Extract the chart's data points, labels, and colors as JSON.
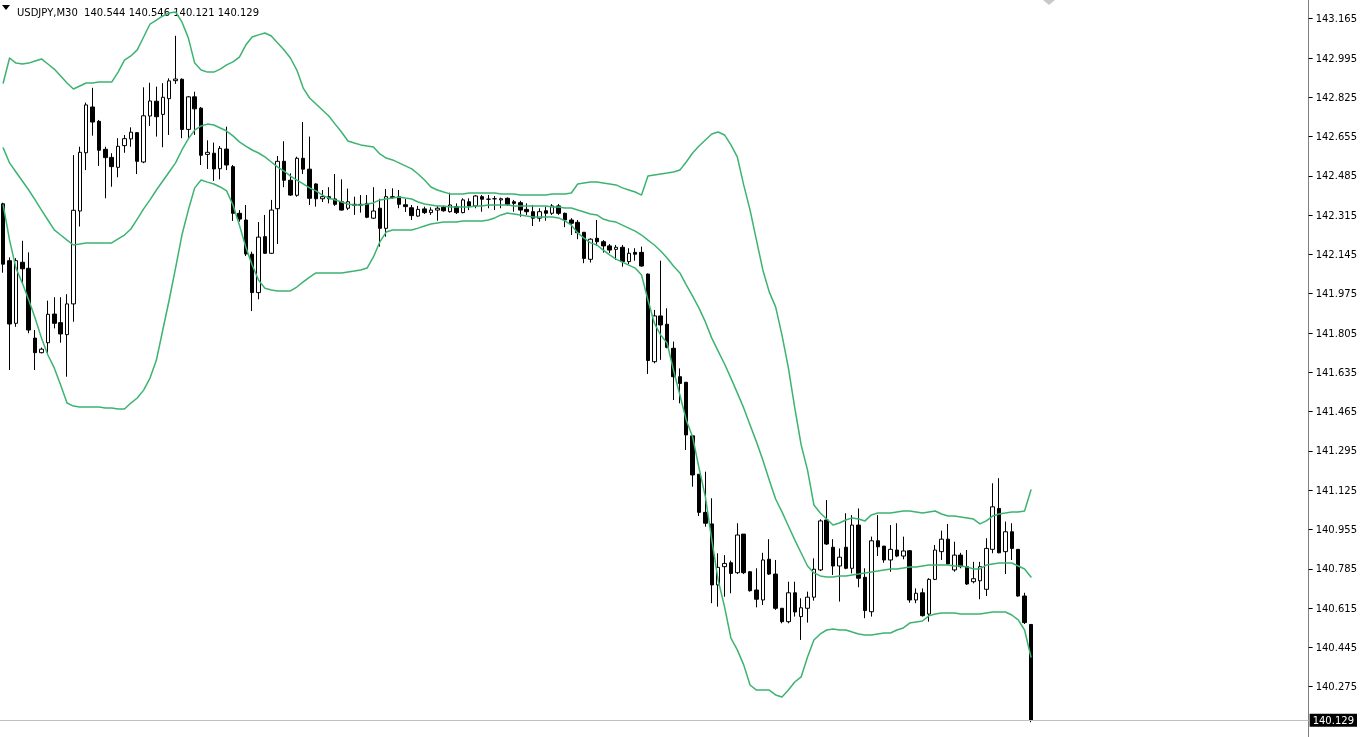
{
  "chart_data": {
    "type": "candlestick",
    "title": "USDJPY,M30  140.544 140.546 140.121 140.129",
    "categories": [
      null,
      null,
      null,
      null,
      null,
      null,
      null,
      null,
      null,
      null,
      null,
      null,
      null,
      null,
      null,
      null,
      null,
      null,
      null,
      null,
      null,
      null,
      null,
      null,
      null,
      null,
      null,
      null,
      null,
      null,
      null,
      null,
      null,
      null,
      null,
      null,
      null,
      null,
      null,
      null,
      null,
      null,
      null,
      null,
      null,
      null,
      null,
      null,
      null,
      null,
      null,
      null,
      null,
      null,
      null,
      null,
      null,
      null,
      null,
      null,
      null,
      null,
      null,
      null,
      null,
      null,
      null,
      null,
      null,
      null,
      null,
      null,
      null,
      null,
      null,
      null,
      null,
      null,
      null,
      null,
      null,
      null,
      null,
      null,
      null,
      null,
      null,
      null,
      null,
      null,
      null,
      null,
      null,
      null,
      null,
      null,
      null,
      null,
      null,
      null,
      null,
      null,
      null,
      null,
      null,
      null,
      null,
      null,
      null,
      null,
      null,
      null,
      null,
      null,
      null,
      null,
      null,
      null,
      null,
      null,
      null,
      null,
      null,
      null,
      null,
      null,
      null,
      null,
      null,
      null,
      null,
      null,
      null,
      null,
      null,
      null,
      null,
      null,
      null,
      null,
      null,
      null,
      null,
      null,
      null,
      null,
      null,
      null,
      null,
      null,
      null,
      null,
      null,
      null,
      null,
      null,
      null,
      null,
      null,
      null,
      null,
      null,
      null,
      null,
      null,
      null,
      null,
      null,
      null,
      null,
      null,
      null,
      null,
      null,
      null,
      null,
      null,
      null,
      null,
      null,
      null,
      null,
      null,
      null,
      null,
      null,
      null,
      null,
      null,
      null,
      null,
      null,
      null,
      null,
      null,
      null,
      null,
      null,
      null,
      null,
      null,
      null,
      null,
      null,
      null
    ],
    "ohlc": [
      [
        142.364,
        142.369,
        142.066,
        142.103
      ],
      [
        142.118,
        142.132,
        141.645,
        141.844
      ],
      [
        141.847,
        142.129,
        141.832,
        142.118
      ],
      [
        142.111,
        142.204,
        142.02,
        142.083
      ],
      [
        142.085,
        142.154,
        141.804,
        141.818
      ],
      [
        141.783,
        141.818,
        141.645,
        141.72
      ],
      [
        141.72,
        141.742,
        141.717,
        141.735
      ],
      [
        141.763,
        141.945,
        141.717,
        141.886
      ],
      [
        141.887,
        141.96,
        141.825,
        141.847
      ],
      [
        141.85,
        141.96,
        141.763,
        141.801
      ],
      [
        141.798,
        141.973,
        141.616,
        141.931
      ],
      [
        141.931,
        142.575,
        141.854,
        142.336
      ],
      [
        142.333,
        142.611,
        142.266,
        142.587
      ],
      [
        142.585,
        142.802,
        142.51,
        142.792
      ],
      [
        142.783,
        142.866,
        142.659,
        142.718
      ],
      [
        142.721,
        142.727,
        142.528,
        142.596
      ],
      [
        142.6,
        142.611,
        142.388,
        142.564
      ],
      [
        142.565,
        142.583,
        142.438,
        142.525
      ],
      [
        142.522,
        142.648,
        142.479,
        142.613
      ],
      [
        142.616,
        142.662,
        142.585,
        142.646
      ],
      [
        142.645,
        142.695,
        142.611,
        142.674
      ],
      [
        142.672,
        142.674,
        142.493,
        142.548
      ],
      [
        142.545,
        142.868,
        142.54,
        142.745
      ],
      [
        142.744,
        142.888,
        142.701,
        142.809
      ],
      [
        142.808,
        142.871,
        142.655,
        142.741
      ],
      [
        142.751,
        142.886,
        142.609,
        142.825
      ],
      [
        142.819,
        142.907,
        142.662,
        142.896
      ],
      [
        142.897,
        143.091,
        142.883,
        142.904
      ],
      [
        142.903,
        142.907,
        142.648,
        142.686
      ],
      [
        142.686,
        142.83,
        142.646,
        142.827
      ],
      [
        142.827,
        142.849,
        142.662,
        142.775
      ],
      [
        142.778,
        142.783,
        142.532,
        142.574
      ],
      [
        142.578,
        142.639,
        142.515,
        142.587
      ],
      [
        142.583,
        142.629,
        142.463,
        142.515
      ],
      [
        142.516,
        142.614,
        142.47,
        142.604
      ],
      [
        142.601,
        142.698,
        142.51,
        142.532
      ],
      [
        142.525,
        142.532,
        142.29,
        142.323
      ],
      [
        142.323,
        142.337,
        142.287,
        142.298
      ],
      [
        142.294,
        142.359,
        142.138,
        142.147
      ],
      [
        142.146,
        142.157,
        141.9,
        141.98
      ],
      [
        141.98,
        142.285,
        141.951,
        142.22
      ],
      [
        142.222,
        142.316,
        142.147,
        142.15
      ],
      [
        142.15,
        142.381,
        142.147,
        142.337
      ],
      [
        142.343,
        142.571,
        142.19,
        142.548
      ],
      [
        142.548,
        142.635,
        142.436,
        142.466
      ],
      [
        142.466,
        142.496,
        142.398,
        142.402
      ],
      [
        142.401,
        142.568,
        142.395,
        142.561
      ],
      [
        142.561,
        142.718,
        142.493,
        142.514
      ],
      [
        142.514,
        142.655,
        142.359,
        142.388
      ],
      [
        142.45,
        142.453,
        142.352,
        142.386
      ],
      [
        142.386,
        142.424,
        142.372,
        142.395
      ],
      [
        142.395,
        142.436,
        142.366,
        142.386
      ],
      [
        142.385,
        142.493,
        142.355,
        142.362
      ],
      [
        142.373,
        142.47,
        142.335,
        142.337
      ],
      [
        142.345,
        142.43,
        142.337,
        142.373
      ],
      [
        142.362,
        142.395,
        142.316,
        142.358
      ],
      [
        142.362,
        142.402,
        142.326,
        142.358
      ],
      [
        142.366,
        142.402,
        142.302,
        142.306
      ],
      [
        142.302,
        142.436,
        142.298,
        142.333
      ],
      [
        142.345,
        142.386,
        142.179,
        142.258
      ],
      [
        142.258,
        142.428,
        142.222,
        142.395
      ],
      [
        142.395,
        142.431,
        142.386,
        142.391
      ],
      [
        142.395,
        142.424,
        142.345,
        142.362
      ],
      [
        142.36,
        142.385,
        142.329,
        142.352
      ],
      [
        142.347,
        142.359,
        142.294,
        142.313
      ],
      [
        142.311,
        142.355,
        142.308,
        142.34
      ],
      [
        142.342,
        142.352,
        142.32,
        142.326
      ],
      [
        142.326,
        142.349,
        142.316,
        142.337
      ],
      [
        142.337,
        142.355,
        142.291,
        142.345
      ],
      [
        142.349,
        142.355,
        142.33,
        142.334
      ],
      [
        142.33,
        142.412,
        142.326,
        142.359
      ],
      [
        142.352,
        142.366,
        142.32,
        142.326
      ],
      [
        142.326,
        142.388,
        142.323,
        142.381
      ],
      [
        142.373,
        142.388,
        142.337,
        142.355
      ],
      [
        142.355,
        142.402,
        142.345,
        142.398
      ],
      [
        142.395,
        142.402,
        142.33,
        142.384
      ],
      [
        142.384,
        142.402,
        142.345,
        142.384
      ],
      [
        142.386,
        142.398,
        142.337,
        142.386
      ],
      [
        142.381,
        142.391,
        142.345,
        142.386
      ],
      [
        142.388,
        142.392,
        142.355,
        142.362
      ],
      [
        142.373,
        142.381,
        142.33,
        142.366
      ],
      [
        142.369,
        142.377,
        142.308,
        142.337
      ],
      [
        142.34,
        142.366,
        142.316,
        142.33
      ],
      [
        142.33,
        142.359,
        142.268,
        142.302
      ],
      [
        142.302,
        142.345,
        142.287,
        142.33
      ],
      [
        142.334,
        142.352,
        142.291,
        142.323
      ],
      [
        142.323,
        142.363,
        142.316,
        142.355
      ],
      [
        142.355,
        142.363,
        142.316,
        142.323
      ],
      [
        142.323,
        142.326,
        142.263,
        142.294
      ],
      [
        142.294,
        142.302,
        142.229,
        142.28
      ],
      [
        142.284,
        142.294,
        142.211,
        142.239
      ],
      [
        142.241,
        142.241,
        142.107,
        142.128
      ],
      [
        142.124,
        142.215,
        142.11,
        142.211
      ],
      [
        142.215,
        142.294,
        142.182,
        142.2
      ],
      [
        142.2,
        142.207,
        142.153,
        142.182
      ],
      [
        142.182,
        142.19,
        142.151,
        142.164
      ],
      [
        142.167,
        142.186,
        142.121,
        142.176
      ],
      [
        142.176,
        142.186,
        142.092,
        142.114
      ],
      [
        142.114,
        142.172,
        142.103,
        142.15
      ],
      [
        142.154,
        142.172,
        142.118,
        142.146
      ],
      [
        142.154,
        142.179,
        142.092,
        142.095
      ],
      [
        142.06,
        142.063,
        141.628,
        141.686
      ],
      [
        141.681,
        141.905,
        141.674,
        141.879
      ],
      [
        141.879,
        142.118,
        141.689,
        141.84
      ],
      [
        141.843,
        141.912,
        141.739,
        141.743
      ],
      [
        141.739,
        141.768,
        141.515,
        141.616
      ],
      [
        141.616,
        141.652,
        141.501,
        141.587
      ],
      [
        141.592,
        141.592,
        141.299,
        141.364
      ],
      [
        141.36,
        141.36,
        141.14,
        141.191
      ],
      [
        141.194,
        141.194,
        141.013,
        141.029
      ],
      [
        141.029,
        141.205,
        140.967,
        140.982
      ],
      [
        140.979,
        141.09,
        140.636,
        140.715
      ],
      [
        140.715,
        140.852,
        140.621,
        140.791
      ],
      [
        140.794,
        140.844,
        140.664,
        140.808
      ],
      [
        140.811,
        140.82,
        140.679,
        140.765
      ],
      [
        140.768,
        140.982,
        140.762,
        140.931
      ],
      [
        140.935,
        140.935,
        140.762,
        140.768
      ],
      [
        140.772,
        140.775,
        140.686,
        140.69
      ],
      [
        140.693,
        140.787,
        140.618,
        140.653
      ],
      [
        140.65,
        140.854,
        140.628,
        140.823
      ],
      [
        140.826,
        140.913,
        140.758,
        140.762
      ],
      [
        140.762,
        140.823,
        140.607,
        140.614
      ],
      [
        140.614,
        140.614,
        140.549,
        140.556
      ],
      [
        140.556,
        140.729,
        140.549,
        140.681
      ],
      [
        140.681,
        140.729,
        140.578,
        140.598
      ],
      [
        140.578,
        140.657,
        140.477,
        140.616
      ],
      [
        140.614,
        140.686,
        140.552,
        140.662
      ],
      [
        140.662,
        140.83,
        140.647,
        140.783
      ],
      [
        140.78,
        140.999,
        140.775,
        140.992
      ],
      [
        140.996,
        141.082,
        140.888,
        140.892
      ],
      [
        140.878,
        140.913,
        140.758,
        140.797
      ],
      [
        140.797,
        140.873,
        140.643,
        140.835
      ],
      [
        140.878,
        141.025,
        140.783,
        140.787
      ],
      [
        140.787,
        141.017,
        140.765,
        140.974
      ],
      [
        140.974,
        141.046,
        140.705,
        140.744
      ],
      [
        140.748,
        140.787,
        140.571,
        140.604
      ],
      [
        140.599,
        140.924,
        140.578,
        140.906
      ],
      [
        140.906,
        141.017,
        140.84,
        140.88
      ],
      [
        140.883,
        140.883,
        140.811,
        140.823
      ],
      [
        140.823,
        140.974,
        140.772,
        140.869
      ],
      [
        140.866,
        140.982,
        140.835,
        140.84
      ],
      [
        140.84,
        140.924,
        140.826,
        140.862
      ],
      [
        140.863,
        140.866,
        140.638,
        140.65
      ],
      [
        140.65,
        140.7,
        140.636,
        140.679
      ],
      [
        140.681,
        140.7,
        140.578,
        140.582
      ],
      [
        140.589,
        140.744,
        140.556,
        140.739
      ],
      [
        140.739,
        140.888,
        140.736,
        140.866
      ],
      [
        140.859,
        140.95,
        140.823,
        140.913
      ],
      [
        140.913,
        140.979,
        140.801,
        140.806
      ],
      [
        140.78,
        140.902,
        140.772,
        140.844
      ],
      [
        140.844,
        140.854,
        140.787,
        140.794
      ],
      [
        140.794,
        140.866,
        140.715,
        140.719
      ],
      [
        140.729,
        140.815,
        140.722,
        140.742
      ],
      [
        140.733,
        140.815,
        140.653,
        140.794
      ],
      [
        140.696,
        140.917,
        140.667,
        140.873
      ],
      [
        140.869,
        141.155,
        140.852,
        141.053
      ],
      [
        141.046,
        141.177,
        140.852,
        140.854
      ],
      [
        140.859,
        140.989,
        140.762,
        140.945
      ],
      [
        140.945,
        140.982,
        140.823,
        140.873
      ],
      [
        140.869,
        140.869,
        140.664,
        140.667
      ],
      [
        140.667,
        140.681,
        140.546,
        140.552
      ],
      [
        140.544,
        140.546,
        140.121,
        140.129
      ],
      null,
      null,
      null,
      null,
      null,
      null,
      null,
      null,
      null,
      null,
      null,
      null,
      null,
      null,
      null,
      null,
      null,
      null,
      null,
      null,
      null,
      null,
      null,
      null,
      null,
      null,
      null,
      null,
      null,
      null,
      null,
      null,
      null,
      null,
      null,
      null,
      null,
      null,
      null,
      null,
      null,
      null,
      null
    ],
    "series": [
      {
        "type": "line",
        "color": "#3cb371",
        "values": [
          142.887,
          142.995,
          142.973,
          142.969,
          142.973,
          142.982,
          142.991,
          142.969,
          142.947,
          142.917,
          142.887,
          142.861,
          142.874,
          142.887,
          142.887,
          142.891,
          142.891,
          142.891,
          142.934,
          142.986,
          143.004,
          143.03,
          143.086,
          143.142,
          143.159,
          143.177,
          143.19,
          143.194,
          143.151,
          143.082,
          142.973,
          142.943,
          142.934,
          142.934,
          142.947,
          142.965,
          142.978,
          142.999,
          143.051,
          143.086,
          143.095,
          143.103,
          143.09,
          143.06,
          143.03,
          142.995,
          142.943,
          142.865,
          142.822,
          142.796,
          142.77,
          142.744,
          142.709,
          142.675,
          142.636,
          142.627,
          142.619,
          142.614,
          142.61,
          142.58,
          142.562,
          142.554,
          142.541,
          142.528,
          142.515,
          142.493,
          142.467,
          142.437,
          142.424,
          142.415,
          142.407,
          142.407,
          142.407,
          142.411,
          142.411,
          142.411,
          142.411,
          142.411,
          142.407,
          142.407,
          142.407,
          142.402,
          142.402,
          142.402,
          142.402,
          142.402,
          142.407,
          142.407,
          142.407,
          142.411,
          142.45,
          142.454,
          142.458,
          142.458,
          142.454,
          142.45,
          142.446,
          142.433,
          142.424,
          142.415,
          142.402,
          142.484,
          142.489,
          142.493,
          142.497,
          142.502,
          142.51,
          142.545,
          142.584,
          142.614,
          142.64,
          142.666,
          142.675,
          142.662,
          142.619,
          142.567,
          142.446,
          142.337,
          142.207,
          142.078,
          141.983,
          141.918,
          141.796,
          141.654,
          141.481,
          141.321,
          141.212,
          141.061,
          141.026,
          141.0,
          140.974,
          140.983,
          140.996,
          141.005,
          141.0,
          140.992,
          141.018,
          141.026,
          141.026,
          141.026,
          141.031,
          141.035,
          141.035,
          141.031,
          141.026,
          141.031,
          141.035,
          141.022,
          141.013,
          141.013,
          141.009,
          141.005,
          141.0,
          140.979,
          140.992,
          141.013,
          141.022,
          141.026,
          141.031,
          141.031,
          141.035,
          141.126,
          null,
          null,
          null,
          null,
          null,
          null,
          null,
          null,
          null,
          null,
          null,
          null,
          null,
          null,
          null,
          null,
          null,
          null,
          null,
          null,
          null,
          null,
          null,
          null,
          null,
          null,
          null,
          null,
          null,
          null,
          null,
          null,
          null,
          null,
          null,
          null,
          null,
          null,
          null,
          null,
          null,
          null,
          null
        ]
      },
      {
        "type": "line",
        "color": "#3cb371",
        "values": [
          142.606,
          142.541,
          142.502,
          142.463,
          142.424,
          142.381,
          142.337,
          142.294,
          142.251,
          142.229,
          142.207,
          142.186,
          142.19,
          142.195,
          142.195,
          142.195,
          142.195,
          142.195,
          142.212,
          142.229,
          142.255,
          142.298,
          142.342,
          142.381,
          142.424,
          142.463,
          142.502,
          142.541,
          142.597,
          142.645,
          142.683,
          142.701,
          142.709,
          142.705,
          142.692,
          142.679,
          142.658,
          142.632,
          142.614,
          142.597,
          142.584,
          142.567,
          142.545,
          142.523,
          142.506,
          142.484,
          142.467,
          142.45,
          142.433,
          142.42,
          142.402,
          142.389,
          142.381,
          142.372,
          142.363,
          142.359,
          142.359,
          142.363,
          142.368,
          142.381,
          142.385,
          142.389,
          142.394,
          142.389,
          142.385,
          142.372,
          142.363,
          142.359,
          142.355,
          142.355,
          142.35,
          142.35,
          142.35,
          142.35,
          142.355,
          142.355,
          142.359,
          142.359,
          142.359,
          142.359,
          142.355,
          142.355,
          142.355,
          142.355,
          142.355,
          142.355,
          142.35,
          142.35,
          142.346,
          142.346,
          142.337,
          142.329,
          142.32,
          142.316,
          142.298,
          142.29,
          142.285,
          142.272,
          142.259,
          142.246,
          142.229,
          142.207,
          142.186,
          142.16,
          142.13,
          142.095,
          142.065,
          142.013,
          141.965,
          141.913,
          141.853,
          141.783,
          141.727,
          141.671,
          141.61,
          141.546,
          141.481,
          141.407,
          141.334,
          141.256,
          141.169,
          141.087,
          141.031,
          140.97,
          140.91,
          140.853,
          140.797,
          140.767,
          140.754,
          140.749,
          140.749,
          140.754,
          140.754,
          140.758,
          140.762,
          140.767,
          140.771,
          140.775,
          140.78,
          140.784,
          140.784,
          140.788,
          140.793,
          140.793,
          140.797,
          140.801,
          140.801,
          140.801,
          140.801,
          140.797,
          140.797,
          140.793,
          140.784,
          140.784,
          140.801,
          140.806,
          140.81,
          140.81,
          140.81,
          140.797,
          140.784,
          140.749,
          null,
          null,
          null,
          null,
          null,
          null,
          null,
          null,
          null,
          null,
          null,
          null,
          null,
          null,
          null,
          null,
          null,
          null,
          null,
          null,
          null,
          null,
          null,
          null,
          null,
          null,
          null,
          null,
          null,
          null,
          null,
          null,
          null,
          null,
          null,
          null,
          null,
          null,
          null,
          null,
          null,
          null,
          null
        ]
      },
      {
        "type": "line",
        "color": "#3cb371",
        "values": [
          142.359,
          142.207,
          142.086,
          142.021,
          141.948,
          141.87,
          141.783,
          141.71,
          141.654,
          141.58,
          141.502,
          141.489,
          141.485,
          141.485,
          141.485,
          141.485,
          141.481,
          141.481,
          141.476,
          141.476,
          141.502,
          141.524,
          141.558,
          141.61,
          141.688,
          141.818,
          141.948,
          142.086,
          142.229,
          142.337,
          142.433,
          142.467,
          142.458,
          142.45,
          142.437,
          142.42,
          142.359,
          142.272,
          142.177,
          142.099,
          142.034,
          141.999,
          141.991,
          141.987,
          141.987,
          141.987,
          142.004,
          142.026,
          142.047,
          142.065,
          142.065,
          142.065,
          142.065,
          142.065,
          142.069,
          142.073,
          142.078,
          142.086,
          142.134,
          142.199,
          142.242,
          142.251,
          142.251,
          142.251,
          142.251,
          142.259,
          142.268,
          142.277,
          142.281,
          142.285,
          142.285,
          142.285,
          142.29,
          142.29,
          142.29,
          142.29,
          142.294,
          142.303,
          142.316,
          142.324,
          142.32,
          142.316,
          142.311,
          142.307,
          142.307,
          142.307,
          142.307,
          142.303,
          142.29,
          142.272,
          142.238,
          142.216,
          142.195,
          142.186,
          142.164,
          142.143,
          142.125,
          142.112,
          142.099,
          142.086,
          142.056,
          141.948,
          141.848,
          141.796,
          141.762,
          141.645,
          141.537,
          141.429,
          141.355,
          141.221,
          141.096,
          140.91,
          140.736,
          140.62,
          140.485,
          140.434,
          140.369,
          140.282,
          140.26,
          140.26,
          140.26,
          140.239,
          140.23,
          140.26,
          140.295,
          140.317,
          140.403,
          140.477,
          140.503,
          140.52,
          140.524,
          140.52,
          140.52,
          140.511,
          140.503,
          140.498,
          140.498,
          140.503,
          140.507,
          140.507,
          140.52,
          140.529,
          140.55,
          140.555,
          140.559,
          140.581,
          140.589,
          140.594,
          140.594,
          140.594,
          140.589,
          140.589,
          140.589,
          140.589,
          140.594,
          140.598,
          140.598,
          140.598,
          140.585,
          140.564,
          140.52,
          140.403,
          null,
          null,
          null,
          null,
          null,
          null,
          null,
          null,
          null,
          null,
          null,
          null,
          null,
          null,
          null,
          null,
          null,
          null,
          null,
          null,
          null,
          null,
          null,
          null,
          null,
          null,
          null,
          null,
          null,
          null,
          null,
          null,
          null,
          null,
          null,
          null,
          null,
          null,
          null,
          null,
          null,
          null,
          null
        ]
      }
    ],
    "ylim": [
      140.057,
      143.246
    ],
    "yticks": [
      140.275,
      140.445,
      140.615,
      140.785,
      140.955,
      141.125,
      141.295,
      141.465,
      141.635,
      141.805,
      141.975,
      142.145,
      142.315,
      142.485,
      142.655,
      142.825,
      142.995,
      143.165
    ],
    "ref_lines": [
      {
        "axis": "y",
        "value": 140.129,
        "label": "140.129",
        "color": "#c0c0c0"
      }
    ],
    "tick_labels": "y",
    "grid": false,
    "marker": "none",
    "line_style": "solid"
  }
}
